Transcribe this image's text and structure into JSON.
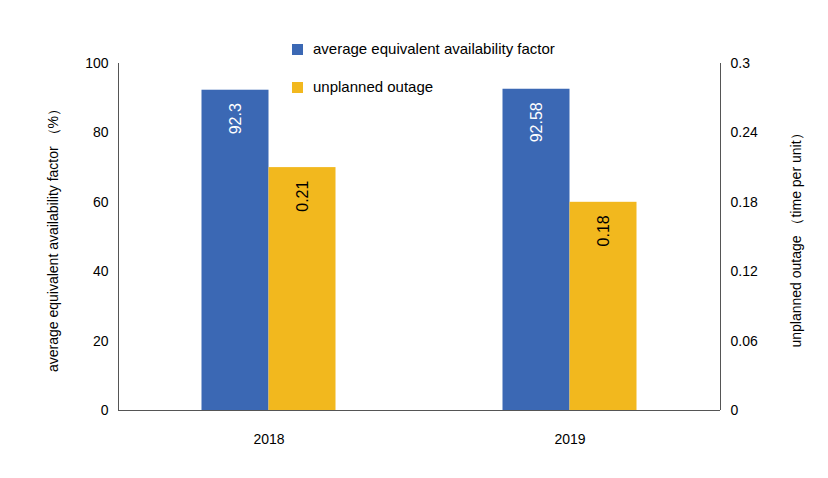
{
  "chart_data": {
    "type": "bar",
    "categories": [
      "2018",
      "2019"
    ],
    "series": [
      {
        "name": "average equivalent availability factor",
        "color": "#3b68b4",
        "values": [
          92.3,
          92.58
        ]
      },
      {
        "name": "unplanned outage",
        "color": "#f2b81e",
        "values": [
          0.21,
          0.18
        ],
        "axis": "y2"
      }
    ],
    "ylabel": "average equivalent availability factor （%）",
    "y2label": "unplanned outage （time per unit）",
    "ylim": [
      0,
      100
    ],
    "yticks": [
      0,
      20,
      40,
      60,
      80,
      100
    ],
    "y2lim": [
      0,
      0.3
    ],
    "y2ticks": [
      0,
      0.06,
      0.12,
      0.18,
      0.24,
      0.3
    ],
    "data_labels": true,
    "legend": "top",
    "grid": false
  }
}
